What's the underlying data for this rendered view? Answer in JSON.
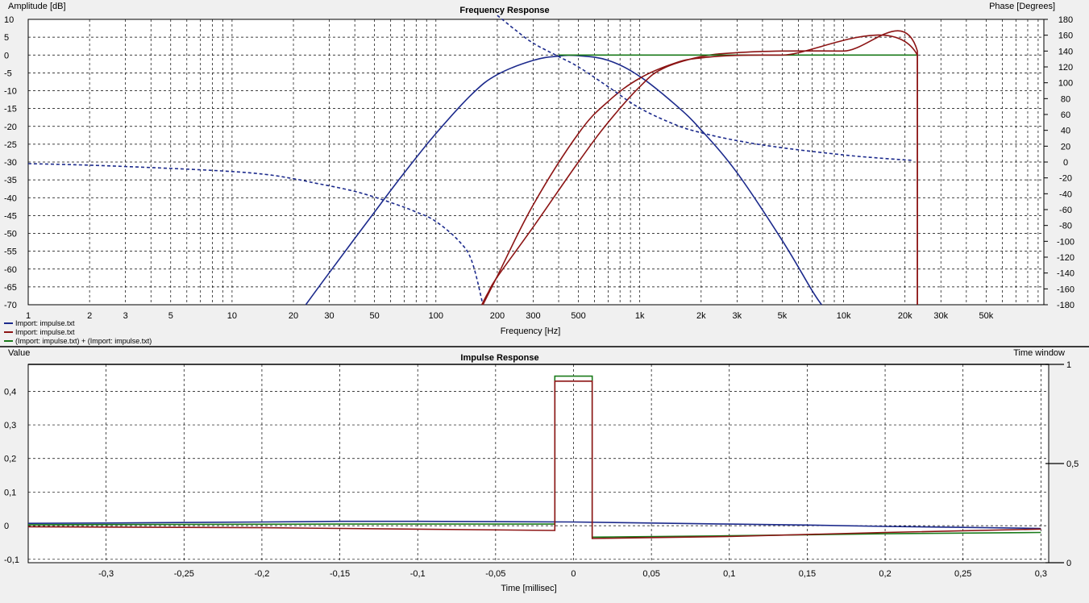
{
  "chart_data": [
    {
      "type": "line",
      "title": "Frequency Response",
      "xlabel": "Frequency [Hz]",
      "ylabel": "Amplitude [dB]",
      "y2label": "Phase [Degrees]",
      "xscale": "log",
      "xlim": [
        1,
        96000
      ],
      "ylim": [
        -70,
        10
      ],
      "y2lim": [
        -180,
        180
      ],
      "grid": true,
      "legend_position": "bottom-left",
      "x_ticks": [
        {
          "v": 1,
          "t": "1"
        },
        {
          "v": 2,
          "t": "2"
        },
        {
          "v": 3,
          "t": "3"
        },
        {
          "v": 5,
          "t": "5"
        },
        {
          "v": 10,
          "t": "10"
        },
        {
          "v": 20,
          "t": "20"
        },
        {
          "v": 30,
          "t": "30"
        },
        {
          "v": 50,
          "t": "50"
        },
        {
          "v": 100,
          "t": "100"
        },
        {
          "v": 200,
          "t": "200"
        },
        {
          "v": 300,
          "t": "300"
        },
        {
          "v": 500,
          "t": "500"
        },
        {
          "v": 1000,
          "t": "1k"
        },
        {
          "v": 2000,
          "t": "2k"
        },
        {
          "v": 3000,
          "t": "3k"
        },
        {
          "v": 5000,
          "t": "5k"
        },
        {
          "v": 10000,
          "t": "10k"
        },
        {
          "v": 20000,
          "t": "20k"
        },
        {
          "v": 30000,
          "t": "30k"
        },
        {
          "v": 50000,
          "t": "50k"
        }
      ],
      "y_ticks": [
        {
          "v": 10,
          "t": "10"
        },
        {
          "v": 5,
          "t": "5"
        },
        {
          "v": 0,
          "t": "0"
        },
        {
          "v": -5,
          "t": "-5"
        },
        {
          "v": -10,
          "t": "-10"
        },
        {
          "v": -15,
          "t": "-15"
        },
        {
          "v": -20,
          "t": "-20"
        },
        {
          "v": -25,
          "t": "-25"
        },
        {
          "v": -30,
          "t": "-30"
        },
        {
          "v": -35,
          "t": "-35"
        },
        {
          "v": -40,
          "t": "-40"
        },
        {
          "v": -45,
          "t": "-45"
        },
        {
          "v": -50,
          "t": "-50"
        },
        {
          "v": -55,
          "t": "-55"
        },
        {
          "v": -60,
          "t": "-60"
        },
        {
          "v": -65,
          "t": "-65"
        },
        {
          "v": -70,
          "t": "-70"
        }
      ],
      "y2_ticks": [
        {
          "v": 180,
          "t": "180"
        },
        {
          "v": 160,
          "t": "160"
        },
        {
          "v": 140,
          "t": "140"
        },
        {
          "v": 120,
          "t": "120"
        },
        {
          "v": 100,
          "t": "100"
        },
        {
          "v": 80,
          "t": "80"
        },
        {
          "v": 60,
          "t": "60"
        },
        {
          "v": 40,
          "t": "40"
        },
        {
          "v": 20,
          "t": "20"
        },
        {
          "v": 0,
          "t": "0"
        },
        {
          "v": -20,
          "t": "-20"
        },
        {
          "v": -40,
          "t": "-40"
        },
        {
          "v": -60,
          "t": "-60"
        },
        {
          "v": -80,
          "t": "-80"
        },
        {
          "v": -100,
          "t": "-100"
        },
        {
          "v": -120,
          "t": "-120"
        },
        {
          "v": -140,
          "t": "-140"
        },
        {
          "v": -160,
          "t": "-160"
        },
        {
          "v": -180,
          "t": "-180"
        }
      ],
      "legend": [
        {
          "name": "Import: impulse.txt",
          "color": "#1c2a8c"
        },
        {
          "name": "Import: impulse.txt",
          "color": "#8c1414"
        },
        {
          "name": "(Import: impulse.txt) + (Import: impulse.txt)",
          "color": "#1a7a1a"
        }
      ],
      "series": [
        {
          "role": "blue-amplitude",
          "color": "#1c2a8c",
          "dash": false,
          "axis": "left",
          "points": [
            [
              23,
              -70
            ],
            [
              30,
              -61
            ],
            [
              50,
              -44
            ],
            [
              70,
              -33
            ],
            [
              100,
              -22
            ],
            [
              150,
              -11
            ],
            [
              200,
              -5.5
            ],
            [
              300,
              -1.5
            ],
            [
              400,
              -0.3
            ],
            [
              500,
              -0.2
            ],
            [
              700,
              -1.5
            ],
            [
              1000,
              -6
            ],
            [
              1500,
              -14
            ],
            [
              2000,
              -21
            ],
            [
              3000,
              -33
            ],
            [
              5000,
              -52
            ],
            [
              7000,
              -66
            ],
            [
              7800,
              -70
            ]
          ]
        },
        {
          "role": "blue-phase",
          "color": "#1c2a8c",
          "dash": true,
          "axis": "right",
          "points": [
            [
              1,
              -2
            ],
            [
              2,
              -4
            ],
            [
              5,
              -8
            ],
            [
              10,
              -12
            ],
            [
              15,
              -16
            ],
            [
              20,
              -21
            ],
            [
              25,
              -26
            ],
            [
              40,
              -37
            ],
            [
              60,
              -51
            ],
            [
              80,
              -63
            ],
            [
              100,
              -75
            ],
            [
              130,
              -100
            ],
            [
              150,
              -125
            ],
            [
              170,
              -180
            ]
          ]
        },
        {
          "role": "red-phase",
          "color": "#8c1414",
          "dash": false,
          "axis": "right",
          "points": [
            [
              168,
              -180
            ],
            [
              180,
              -165
            ],
            [
              200,
              -145
            ],
            [
              300,
              -82
            ],
            [
              500,
              0
            ],
            [
              700,
              50
            ],
            [
              1000,
              95
            ],
            [
              1300,
              118
            ],
            [
              2000,
              133
            ],
            [
              3000,
              138
            ],
            [
              5000,
              140
            ],
            [
              10000,
              140
            ],
            [
              23000,
              140
            ],
            [
              23000,
              -180
            ]
          ]
        },
        {
          "role": "combined-amplitude",
          "color": "#1a7a1a",
          "dash": false,
          "axis": "left",
          "points": [
            [
              400,
              0
            ],
            [
              23000,
              0
            ]
          ]
        },
        {
          "role": "red-amplitude",
          "color": "#8c1414",
          "dash": false,
          "axis": "left",
          "points": [
            [
              170,
              -70
            ],
            [
              200,
              -62
            ],
            [
              300,
              -42
            ],
            [
              500,
              -22
            ],
            [
              700,
              -13
            ],
            [
              1000,
              -6.5
            ],
            [
              1500,
              -2.2
            ],
            [
              2000,
              -0.8
            ],
            [
              3000,
              -0.1
            ],
            [
              5000,
              0
            ],
            [
              23000,
              0
            ],
            [
              23000,
              -70
            ]
          ]
        },
        {
          "role": "blue-phase-upper",
          "color": "#1c2a8c",
          "dash": true,
          "axis": "right",
          "points": [
            [
              200,
              185
            ],
            [
              250,
              165
            ],
            [
              300,
              150
            ],
            [
              400,
              133
            ],
            [
              500,
              120
            ],
            [
              700,
              95
            ],
            [
              1000,
              68
            ],
            [
              1500,
              47
            ],
            [
              2000,
              37
            ],
            [
              3000,
              27
            ],
            [
              5000,
              18
            ],
            [
              10000,
              9
            ],
            [
              15000,
              5
            ],
            [
              22000,
              2
            ]
          ]
        }
      ]
    },
    {
      "type": "line",
      "title": "Impulse Response",
      "xlabel": "Time [millisec]",
      "ylabel": "Value",
      "y2label": "Time window",
      "xlim": [
        -0.35,
        0.305
      ],
      "ylim": [
        -0.11,
        0.48
      ],
      "y2lim": [
        0,
        1
      ],
      "grid": true,
      "x_ticks": [
        {
          "v": -0.3,
          "t": "-0,3"
        },
        {
          "v": -0.25,
          "t": "-0,25"
        },
        {
          "v": -0.2,
          "t": "-0,2"
        },
        {
          "v": -0.15,
          "t": "-0,15"
        },
        {
          "v": -0.1,
          "t": "-0,1"
        },
        {
          "v": -0.05,
          "t": "-0,05"
        },
        {
          "v": 0,
          "t": "0"
        },
        {
          "v": 0.05,
          "t": "0,05"
        },
        {
          "v": 0.1,
          "t": "0,1"
        },
        {
          "v": 0.15,
          "t": "0,15"
        },
        {
          "v": 0.2,
          "t": "0,2"
        },
        {
          "v": 0.25,
          "t": "0,25"
        },
        {
          "v": 0.3,
          "t": "0,3"
        }
      ],
      "y_ticks": [
        {
          "v": 0.4,
          "t": "0,4"
        },
        {
          "v": 0.3,
          "t": "0,3"
        },
        {
          "v": 0.2,
          "t": "0,2"
        },
        {
          "v": 0.1,
          "t": "0,1"
        },
        {
          "v": 0,
          "t": "0"
        },
        {
          "v": -0.1,
          "t": "-0,1"
        }
      ],
      "y2_ticks": [
        {
          "v": 1,
          "t": "1"
        },
        {
          "v": 0.5,
          "t": "0,5"
        },
        {
          "v": 0,
          "t": "0"
        }
      ],
      "series": [
        {
          "role": "blue-impulse",
          "color": "#1c2a8c",
          "points": [
            [
              -0.35,
              0.007
            ],
            [
              -0.3,
              0.008
            ],
            [
              -0.2,
              0.011
            ],
            [
              -0.15,
              0.013
            ],
            [
              -0.1,
              0.013
            ],
            [
              -0.05,
              0.012
            ],
            [
              0,
              0.011
            ],
            [
              0.05,
              0.008
            ],
            [
              0.1,
              0.005
            ],
            [
              0.15,
              0.002
            ],
            [
              0.2,
              -0.002
            ],
            [
              0.25,
              -0.005
            ],
            [
              0.3,
              -0.008
            ]
          ]
        },
        {
          "role": "green-impulse",
          "color": "#1a7a1a",
          "points": [
            [
              -0.35,
              0.003
            ],
            [
              -0.15,
              0.005
            ],
            [
              -0.012,
              0.005
            ],
            [
              -0.012,
              0.445
            ],
            [
              0.012,
              0.445
            ],
            [
              0.012,
              -0.034
            ],
            [
              0.1,
              -0.03
            ],
            [
              0.2,
              -0.024
            ],
            [
              0.3,
              -0.02
            ]
          ]
        },
        {
          "role": "red-impulse",
          "color": "#8c1414",
          "points": [
            [
              -0.35,
              -0.003
            ],
            [
              -0.2,
              -0.006
            ],
            [
              -0.012,
              -0.014
            ],
            [
              -0.012,
              0.43
            ],
            [
              0.012,
              0.43
            ],
            [
              0.012,
              -0.038
            ],
            [
              0.1,
              -0.032
            ],
            [
              0.2,
              -0.02
            ],
            [
              0.3,
              -0.01
            ]
          ]
        },
        {
          "role": "time-window",
          "color": "#000000",
          "axis": "right",
          "points": [
            [
              -0.35,
              1
            ],
            [
              0.305,
              1
            ]
          ]
        }
      ]
    }
  ]
}
